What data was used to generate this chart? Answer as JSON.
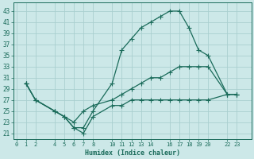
{
  "xlabel": "Humidex (Indice chaleur)",
  "bg_color": "#cce8e8",
  "grid_color": "#aacfcf",
  "line_color": "#1a6b5a",
  "line1_x": [
    1,
    2,
    4,
    5,
    6,
    7,
    8,
    10,
    11,
    12,
    13,
    14,
    15,
    16,
    17,
    18,
    19,
    20,
    22,
    23
  ],
  "line1_y": [
    30,
    27,
    25,
    24,
    22,
    22,
    25,
    30,
    36,
    38,
    40,
    41,
    42,
    43,
    43,
    40,
    36,
    35,
    28,
    28
  ],
  "line2_x": [
    1,
    2,
    4,
    5,
    6,
    7,
    8,
    10,
    11,
    12,
    13,
    14,
    15,
    16,
    17,
    18,
    19,
    20,
    22,
    23
  ],
  "line2_y": [
    30,
    27,
    25,
    24,
    23,
    25,
    26,
    27,
    28,
    29,
    30,
    31,
    31,
    32,
    33,
    33,
    33,
    33,
    28,
    28
  ],
  "line3_x": [
    1,
    2,
    4,
    5,
    6,
    7,
    8,
    10,
    11,
    12,
    13,
    14,
    15,
    16,
    17,
    18,
    19,
    20,
    22,
    23
  ],
  "line3_y": [
    30,
    27,
    25,
    24,
    22,
    21,
    24,
    26,
    26,
    27,
    27,
    27,
    27,
    27,
    27,
    27,
    27,
    27,
    28,
    28
  ],
  "xticks": [
    0,
    1,
    2,
    4,
    5,
    6,
    7,
    8,
    10,
    11,
    12,
    13,
    14,
    16,
    17,
    18,
    19,
    20,
    22,
    23
  ],
  "yticks": [
    21,
    23,
    25,
    27,
    29,
    31,
    33,
    35,
    37,
    39,
    41,
    43
  ],
  "xlim": [
    -0.3,
    24.5
  ],
  "ylim": [
    20,
    44.5
  ]
}
